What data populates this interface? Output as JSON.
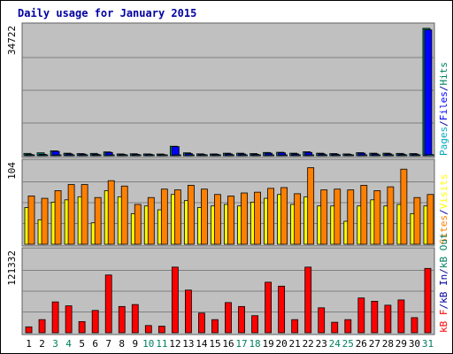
{
  "chart_data": {
    "type": "bar",
    "title": "Daily usage for January 2015",
    "categories": [
      "1",
      "2",
      "3",
      "4",
      "5",
      "6",
      "7",
      "8",
      "9",
      "10",
      "11",
      "12",
      "13",
      "14",
      "15",
      "16",
      "17",
      "18",
      "19",
      "20",
      "21",
      "22",
      "23",
      "24",
      "25",
      "26",
      "27",
      "28",
      "29",
      "30",
      "31"
    ],
    "weekend_days": [
      "3",
      "4",
      "10",
      "11",
      "17",
      "18",
      "24",
      "25",
      "31"
    ],
    "colors": {
      "background": "#ffffff",
      "plot_bg": "#c0c0c0",
      "frame": "#606060",
      "title": "#0000a0",
      "pages": "#00a8c0",
      "files": "#0000ff",
      "hits": "#008060",
      "sites": "#ff8000",
      "visits": "#ffff00",
      "kbytes": "#ff0000",
      "kb_in": "#0000a0",
      "kb_out": "#008060",
      "weekday_label": "#000000",
      "weekend_label": "#008060",
      "gridline": "#808080"
    },
    "panels": [
      {
        "id": "hits-panel",
        "ymax_label": "34722",
        "ymax": 34722,
        "right_label_parts": [
          {
            "text": "Pages",
            "color_key": "pages"
          },
          {
            "text": "/",
            "color_key": "title"
          },
          {
            "text": "Files",
            "color_key": "files"
          },
          {
            "text": "/",
            "color_key": "title"
          },
          {
            "text": "Hits",
            "color_key": "hits"
          }
        ],
        "series": [
          {
            "name": "Hits",
            "color_key": "hits",
            "values": [
              650,
              800,
              1350,
              700,
              600,
              650,
              1050,
              500,
              550,
              500,
              480,
              2600,
              800,
              520,
              500,
              700,
              700,
              600,
              900,
              950,
              700,
              1100,
              700,
              600,
              500,
              850,
              700,
              700,
              650,
              600,
              34722
            ]
          },
          {
            "name": "Files",
            "color_key": "files",
            "values": [
              350,
              400,
              1200,
              500,
              450,
              400,
              900,
              350,
              400,
              400,
              300,
              2500,
              600,
              350,
              400,
              500,
              500,
              400,
              700,
              800,
              500,
              900,
              500,
              450,
              350,
              700,
              500,
              500,
              450,
              450,
              34300
            ]
          },
          {
            "name": "Pages",
            "color_key": "pages",
            "values": [
              60,
              70,
              120,
              80,
              60,
              70,
              100,
              50,
              60,
              50,
              40,
              150,
              80,
              50,
              50,
              70,
              70,
              60,
              90,
              90,
              70,
              100,
              70,
              60,
              50,
              80,
              70,
              70,
              60,
              60,
              300
            ]
          }
        ]
      },
      {
        "id": "sites-panel",
        "ymax_label": "104",
        "ymax": 104,
        "right_label_parts": [
          {
            "text": "Sites",
            "color_key": "sites"
          },
          {
            "text": "/",
            "color_key": "title"
          },
          {
            "text": "Visits",
            "color_key": "visits"
          }
        ],
        "series": [
          {
            "name": "Visits",
            "color_key": "visits",
            "values": [
              48,
              32,
              55,
              58,
              62,
              28,
              70,
              62,
              40,
              50,
              45,
              65,
              57,
              48,
              50,
              52,
              50,
              55,
              60,
              65,
              52,
              62,
              50,
              50,
              30,
              50,
              58,
              50,
              52,
              40,
              50
            ]
          },
          {
            "name": "Sites",
            "color_key": "sites",
            "values": [
              63,
              60,
              70,
              78,
              78,
              61,
              83,
              76,
              52,
              61,
              72,
              71,
              77,
              72,
              65,
              63,
              67,
              68,
              73,
              74,
              66,
              100,
              71,
              72,
              71,
              77,
              70,
              75,
              98,
              61,
              65
            ]
          }
        ]
      },
      {
        "id": "kbytes-panel",
        "ymax_label": "121332",
        "ymax": 121332,
        "right_label_parts": [
          {
            "text": "kB F",
            "color_key": "kbytes"
          },
          {
            "text": "/",
            "color_key": "title"
          },
          {
            "text": "kB In",
            "color_key": "kb_in"
          },
          {
            "text": "/",
            "color_key": "title"
          },
          {
            "text": "kB Out",
            "color_key": "kb_out"
          }
        ],
        "series": [
          {
            "name": "kB F",
            "color_key": "kbytes",
            "values": [
              9000,
              20000,
              47000,
              41000,
              17000,
              34000,
              88000,
              40000,
              43000,
              11000,
              10000,
              100000,
              65000,
              30000,
              20000,
              46000,
              40000,
              26000,
              77000,
              71000,
              20000,
              100000,
              38000,
              16000,
              20000,
              53000,
              48000,
              42000,
              50000,
              23000,
              98000
            ]
          }
        ]
      }
    ]
  }
}
